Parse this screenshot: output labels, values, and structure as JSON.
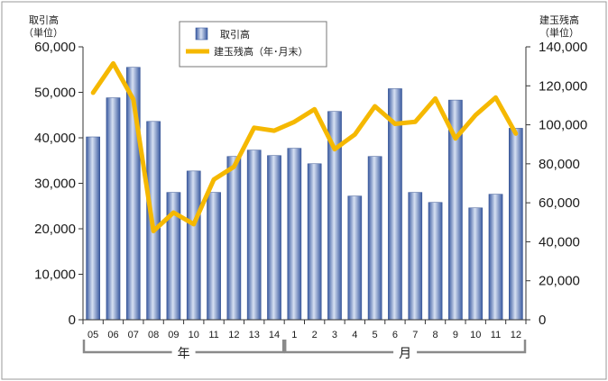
{
  "chart_data": {
    "type": "bar",
    "categories": [
      "05",
      "06",
      "07",
      "08",
      "09",
      "10",
      "11",
      "12",
      "13",
      "14",
      "1",
      "2",
      "3",
      "4",
      "5",
      "6",
      "7",
      "8",
      "9",
      "10",
      "11",
      "12"
    ],
    "series": [
      {
        "name": "取引高",
        "type": "bar",
        "axis": "left",
        "color": "#4a6bb0",
        "values": [
          40200,
          48800,
          55500,
          43600,
          28000,
          32700,
          28000,
          35900,
          37300,
          36100,
          37700,
          34300,
          45800,
          27200,
          35900,
          50800,
          28000,
          25800,
          48300,
          24600,
          27600,
          42100
        ]
      },
      {
        "name": "建玉残高（年･月末）",
        "type": "line",
        "axis": "right",
        "color": "#f5b800",
        "values": [
          116500,
          131500,
          113000,
          45500,
          55000,
          49000,
          72000,
          78500,
          98500,
          97000,
          101500,
          108000,
          87500,
          95000,
          109500,
          100500,
          101500,
          113500,
          93000,
          105000,
          114000,
          95500
        ]
      }
    ],
    "left_axis": {
      "title_line1": "取引高",
      "title_line2": "（単位）",
      "ylim": [
        0,
        60000
      ],
      "ticks": [
        "0",
        "10,000",
        "20,000",
        "30,000",
        "40,000",
        "50,000",
        "60,000"
      ]
    },
    "right_axis": {
      "title_line1": "建玉残高",
      "title_line2": "（単位）",
      "ylim": [
        0,
        140000
      ],
      "ticks": [
        "0",
        "20,000",
        "40,000",
        "60,000",
        "80,000",
        "100,000",
        "120,000",
        "140,000"
      ]
    },
    "groups": [
      {
        "label": "年",
        "from": 0,
        "to": 9
      },
      {
        "label": "月",
        "from": 10,
        "to": 21
      }
    ],
    "legend_placement": "top-center",
    "grid": false
  }
}
